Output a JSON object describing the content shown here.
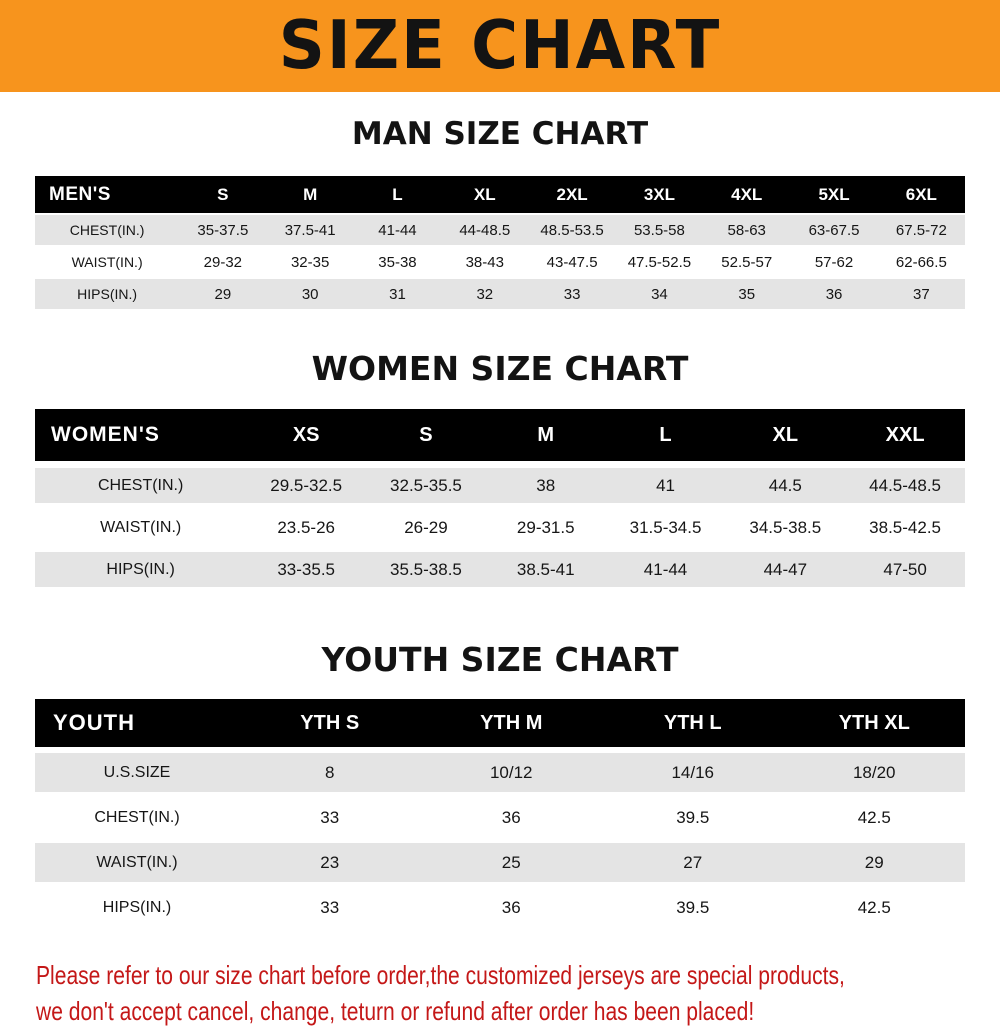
{
  "banner": {
    "title": "SIZE CHART"
  },
  "colors": {
    "banner_bg": "#f7941d",
    "header_bg": "#000000",
    "row_gray": "#e4e4e4",
    "row_white": "#ffffff",
    "footer_red": "#c41818"
  },
  "chart_data": [
    {
      "type": "table",
      "id": "men",
      "title": "MAN SIZE CHART",
      "columns": [
        "MEN'S",
        "S",
        "M",
        "L",
        "XL",
        "2XL",
        "3XL",
        "4XL",
        "5XL",
        "6XL"
      ],
      "rows": [
        [
          "CHEST(IN.)",
          "35-37.5",
          "37.5-41",
          "41-44",
          "44-48.5",
          "48.5-53.5",
          "53.5-58",
          "58-63",
          "63-67.5",
          "67.5-72"
        ],
        [
          "WAIST(IN.)",
          "29-32",
          "32-35",
          "35-38",
          "38-43",
          "43-47.5",
          "47.5-52.5",
          "52.5-57",
          "57-62",
          "62-66.5"
        ],
        [
          "HIPS(IN.)",
          "29",
          "30",
          "31",
          "32",
          "33",
          "34",
          "35",
          "36",
          "37"
        ]
      ]
    },
    {
      "type": "table",
      "id": "women",
      "title": "WOMEN SIZE CHART",
      "columns": [
        "WOMEN'S",
        "XS",
        "S",
        "M",
        "L",
        "XL",
        "XXL"
      ],
      "rows": [
        [
          "CHEST(IN.)",
          "29.5-32.5",
          "32.5-35.5",
          "38",
          "41",
          "44.5",
          "44.5-48.5"
        ],
        [
          "WAIST(IN.)",
          "23.5-26",
          "26-29",
          "29-31.5",
          "31.5-34.5",
          "34.5-38.5",
          "38.5-42.5"
        ],
        [
          "HIPS(IN.)",
          "33-35.5",
          "35.5-38.5",
          "38.5-41",
          "41-44",
          "44-47",
          "47-50"
        ]
      ]
    },
    {
      "type": "table",
      "id": "youth",
      "title": "YOUTH SIZE CHART",
      "columns": [
        "YOUTH",
        "YTH S",
        "YTH M",
        "YTH L",
        "YTH XL"
      ],
      "rows": [
        [
          "U.S.SIZE",
          "8",
          "10/12",
          "14/16",
          "18/20"
        ],
        [
          "CHEST(IN.)",
          "33",
          "36",
          "39.5",
          "42.5"
        ],
        [
          "WAIST(IN.)",
          "23",
          "25",
          "27",
          "29"
        ],
        [
          "HIPS(IN.)",
          "33",
          "36",
          "39.5",
          "42.5"
        ]
      ]
    }
  ],
  "footer": {
    "line1": "Please refer to our size chart before order,the customized jerseys are special products,",
    "line2": "we don't accept cancel, change, teturn or refund after order has been placed!"
  }
}
